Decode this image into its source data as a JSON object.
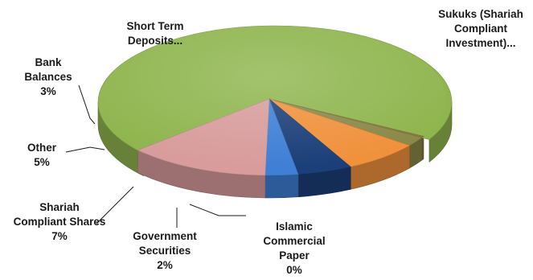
{
  "chart_data": {
    "type": "pie",
    "style": "3d-exploded",
    "slices": [
      {
        "label": [
          "Sukuks (Shariah",
          "Compliant",
          "Investment)..."
        ],
        "value": 70,
        "color": "#8fb54e"
      },
      {
        "label": [
          "Islamic",
          "Commercial",
          "Paper"
        ],
        "value_text": "0%",
        "value": 0.3,
        "color": "#8a7a3c"
      },
      {
        "label": [
          "Government",
          "Securities"
        ],
        "value_text": "2%",
        "value": 2,
        "color": "#8b8848"
      },
      {
        "label": [
          "Shariah",
          "Compliant Shares"
        ],
        "value_text": "7%",
        "value": 7,
        "color": "#f0913c"
      },
      {
        "label": [
          "Other"
        ],
        "value_text": "5%",
        "value": 5,
        "color": "#1b3f79"
      },
      {
        "label": [
          "Bank",
          "Balances"
        ],
        "value_text": "3%",
        "value": 3,
        "color": "#3f7fd6"
      },
      {
        "label": [
          "Short Term",
          "Deposits..."
        ],
        "value": 13,
        "color": "#d89c9c"
      }
    ]
  }
}
